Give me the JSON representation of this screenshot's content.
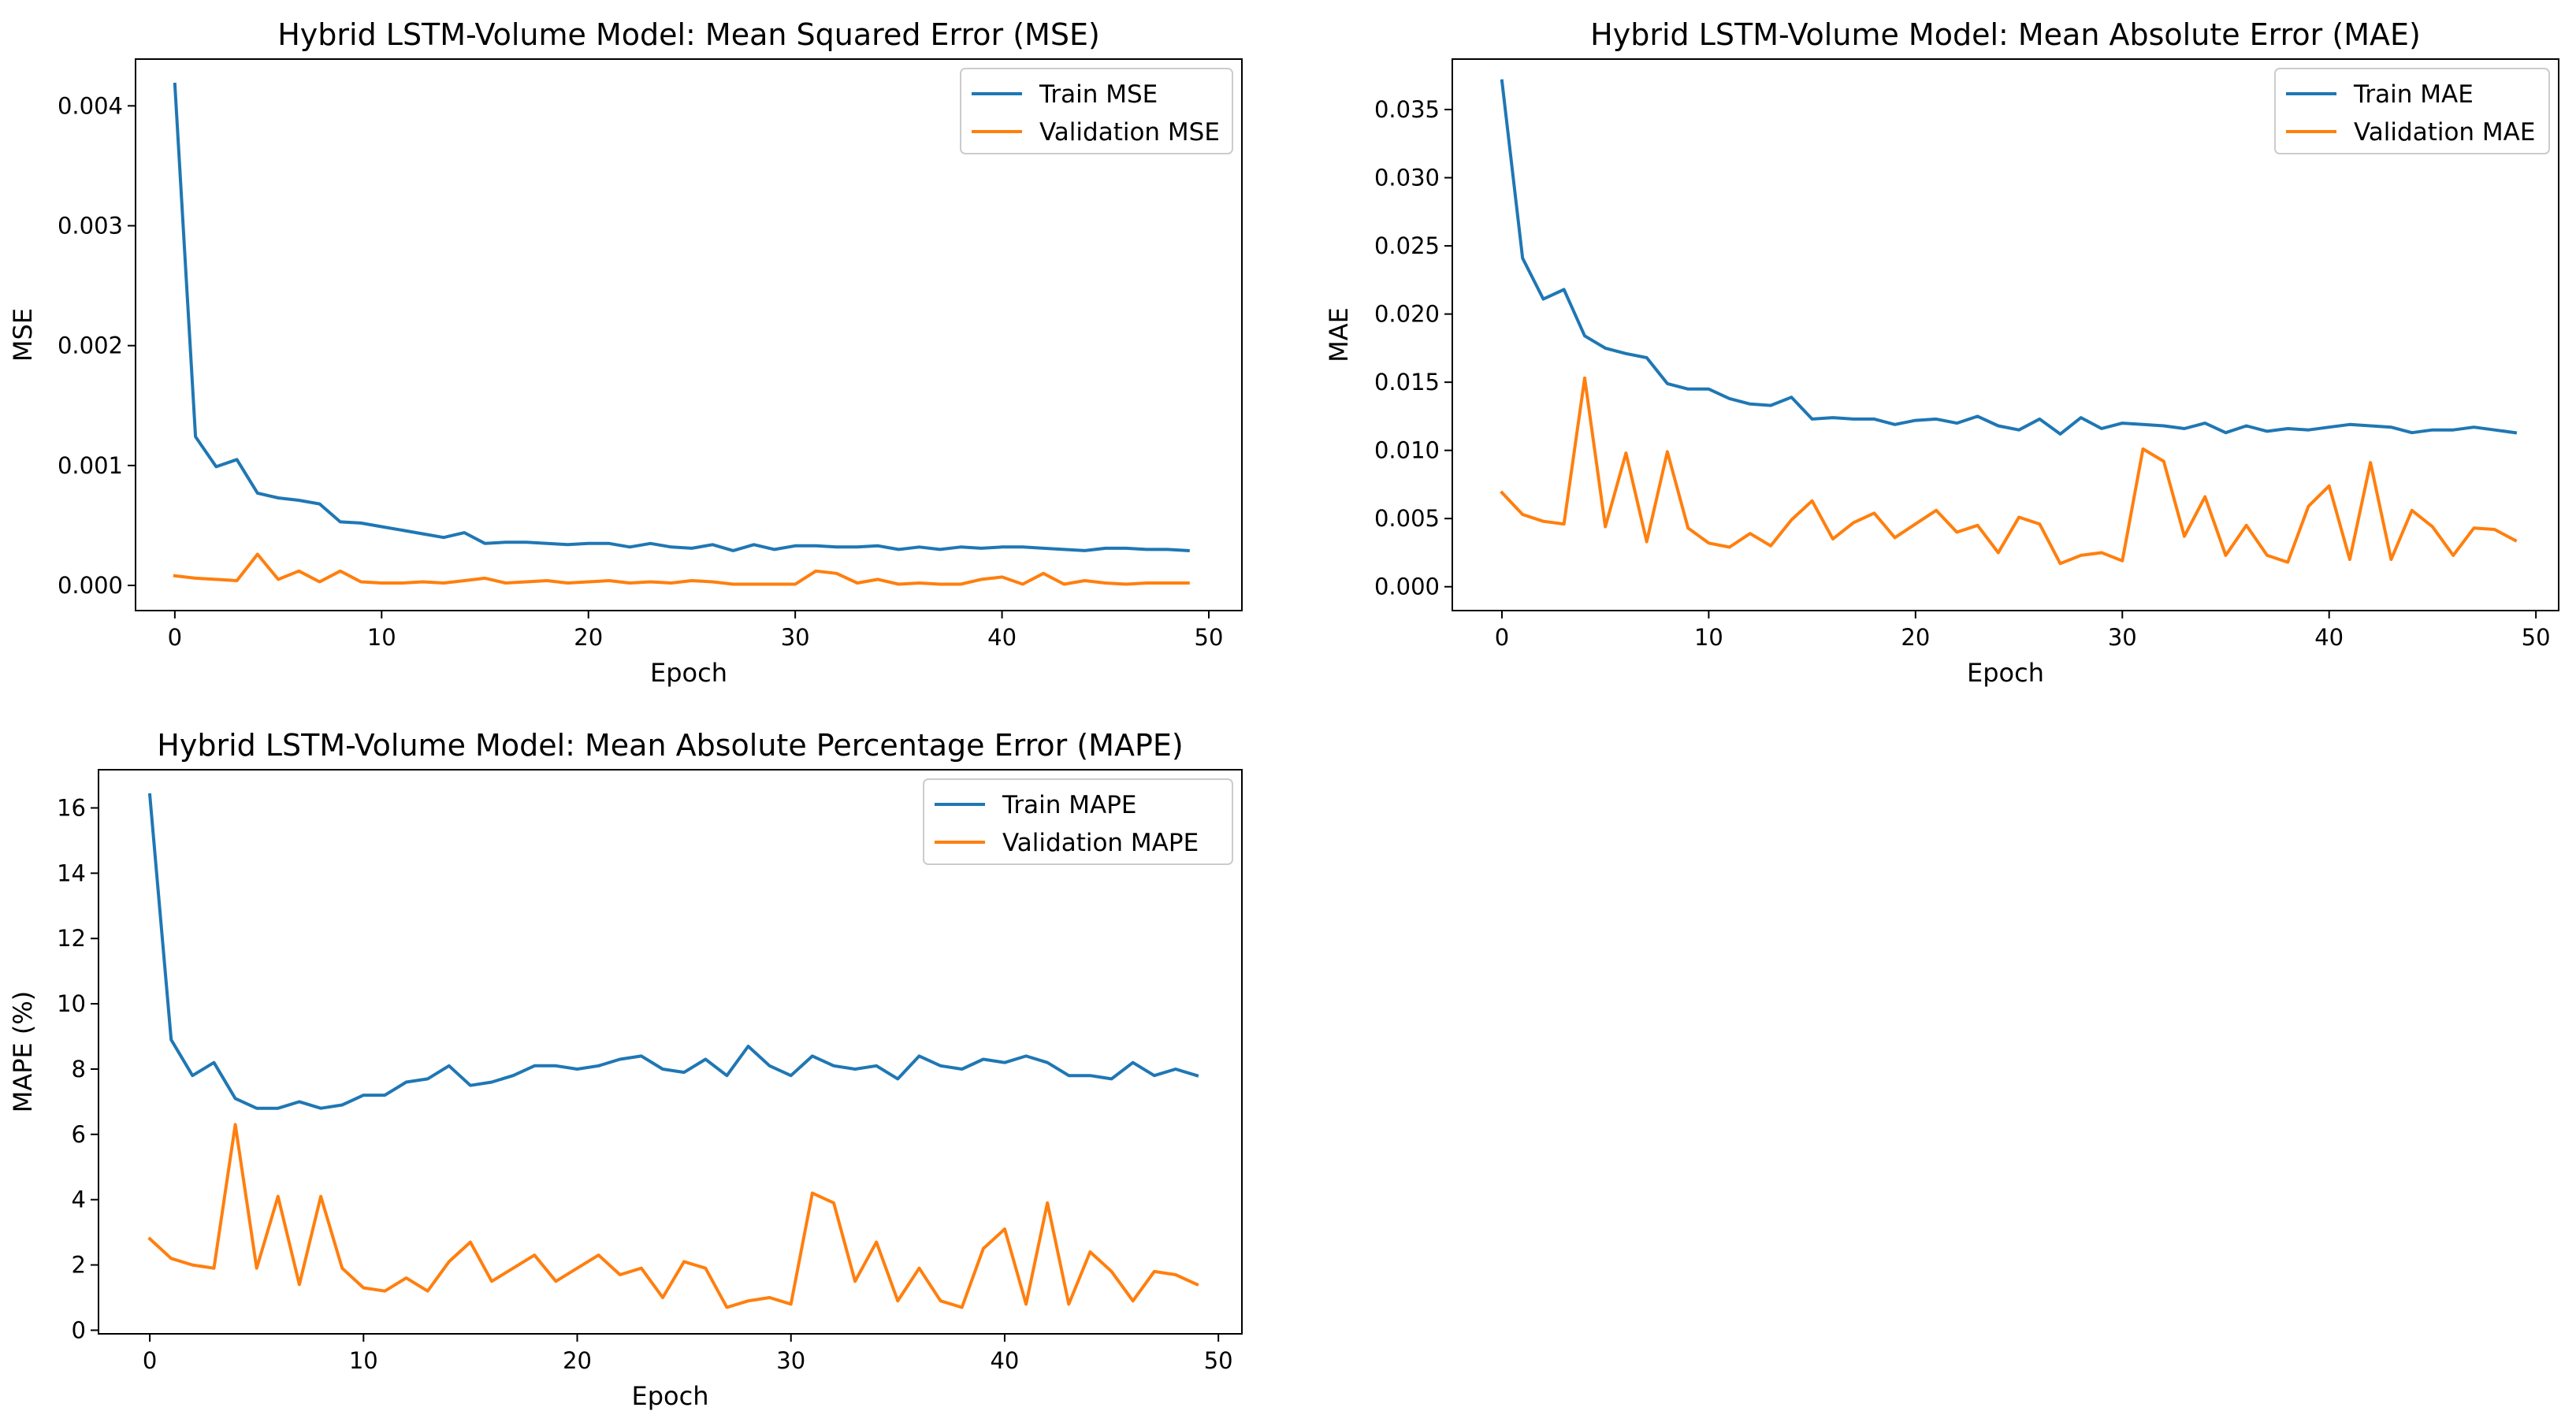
{
  "colors": {
    "train": "#1f77b4",
    "validation": "#ff7f0e"
  },
  "chart_data": [
    {
      "type": "line",
      "title": "Hybrid LSTM-Volume Model: Mean Squared Error (MSE)",
      "xlabel": "Epoch",
      "ylabel": "MSE",
      "xlim": [
        -1.9,
        51.6
      ],
      "ylim": [
        -0.00021,
        0.00439
      ],
      "xticks": [
        0,
        10,
        20,
        30,
        40,
        50
      ],
      "xtick_labels": [
        "0",
        "10",
        "20",
        "30",
        "40",
        "50"
      ],
      "yticks": [
        0,
        0.001,
        0.002,
        0.003,
        0.004
      ],
      "ytick_labels": [
        "0.000",
        "0.001",
        "0.002",
        "0.003",
        "0.004"
      ],
      "legend": "top-right",
      "x": [
        0,
        1,
        2,
        3,
        4,
        5,
        6,
        7,
        8,
        9,
        10,
        11,
        12,
        13,
        14,
        15,
        16,
        17,
        18,
        19,
        20,
        21,
        22,
        23,
        24,
        25,
        26,
        27,
        28,
        29,
        30,
        31,
        32,
        33,
        34,
        35,
        36,
        37,
        38,
        39,
        40,
        41,
        42,
        43,
        44,
        45,
        46,
        47,
        48,
        49
      ],
      "series": [
        {
          "name": "Train MSE",
          "color_key": "train",
          "values": [
            0.00418,
            0.00124,
            0.00099,
            0.00105,
            0.00077,
            0.00073,
            0.00071,
            0.00068,
            0.00053,
            0.00052,
            0.00049,
            0.00046,
            0.00043,
            0.0004,
            0.00044,
            0.00035,
            0.00036,
            0.00036,
            0.00035,
            0.00034,
            0.00035,
            0.00035,
            0.00032,
            0.00035,
            0.00032,
            0.00031,
            0.00034,
            0.00029,
            0.00034,
            0.0003,
            0.00033,
            0.00033,
            0.00032,
            0.00032,
            0.00033,
            0.0003,
            0.00032,
            0.0003,
            0.00032,
            0.00031,
            0.00032,
            0.00032,
            0.00031,
            0.0003,
            0.00029,
            0.00031,
            0.00031,
            0.0003,
            0.0003,
            0.00029
          ]
        },
        {
          "name": "Validation MSE",
          "color_key": "validation",
          "values": [
            8e-05,
            6e-05,
            5e-05,
            4e-05,
            0.00026,
            5e-05,
            0.00012,
            3e-05,
            0.00012,
            3e-05,
            2e-05,
            2e-05,
            3e-05,
            2e-05,
            4e-05,
            6e-05,
            2e-05,
            3e-05,
            4e-05,
            2e-05,
            3e-05,
            4e-05,
            2e-05,
            3e-05,
            2e-05,
            4e-05,
            3e-05,
            1e-05,
            1e-05,
            1e-05,
            1e-05,
            0.00012,
            0.0001,
            2e-05,
            5e-05,
            1e-05,
            2e-05,
            1e-05,
            1e-05,
            5e-05,
            7e-05,
            1e-05,
            0.0001,
            1e-05,
            4e-05,
            2e-05,
            1e-05,
            2e-05,
            2e-05,
            2e-05
          ]
        }
      ]
    },
    {
      "type": "line",
      "title": "Hybrid LSTM-Volume Model: Mean Absolute Error (MAE)",
      "xlabel": "Epoch",
      "ylabel": "MAE",
      "xlim": [
        -2.4,
        51.1
      ],
      "ylim": [
        -0.00175,
        0.0387
      ],
      "xticks": [
        0,
        10,
        20,
        30,
        40,
        50
      ],
      "xtick_labels": [
        "0",
        "10",
        "20",
        "30",
        "40",
        "50"
      ],
      "yticks": [
        0,
        0.005,
        0.01,
        0.015,
        0.02,
        0.025,
        0.03,
        0.035
      ],
      "ytick_labels": [
        "0.000",
        "0.005",
        "0.010",
        "0.015",
        "0.020",
        "0.025",
        "0.030",
        "0.035"
      ],
      "legend": "top-right",
      "x": [
        0,
        1,
        2,
        3,
        4,
        5,
        6,
        7,
        8,
        9,
        10,
        11,
        12,
        13,
        14,
        15,
        16,
        17,
        18,
        19,
        20,
        21,
        22,
        23,
        24,
        25,
        26,
        27,
        28,
        29,
        30,
        31,
        32,
        33,
        34,
        35,
        36,
        37,
        38,
        39,
        40,
        41,
        42,
        43,
        44,
        45,
        46,
        47,
        48,
        49
      ],
      "series": [
        {
          "name": "Train MAE",
          "color_key": "train",
          "values": [
            0.0371,
            0.0241,
            0.0211,
            0.0218,
            0.0184,
            0.0175,
            0.0171,
            0.0168,
            0.0149,
            0.0145,
            0.0145,
            0.0138,
            0.0134,
            0.0133,
            0.0139,
            0.0123,
            0.0124,
            0.0123,
            0.0123,
            0.0119,
            0.0122,
            0.0123,
            0.012,
            0.0125,
            0.0118,
            0.0115,
            0.0123,
            0.0112,
            0.0124,
            0.0116,
            0.012,
            0.0119,
            0.0118,
            0.0116,
            0.012,
            0.0113,
            0.0118,
            0.0114,
            0.0116,
            0.0115,
            0.0117,
            0.0119,
            0.0118,
            0.0117,
            0.0113,
            0.0115,
            0.0115,
            0.0117,
            0.0115,
            0.0113
          ]
        },
        {
          "name": "Validation MAE",
          "color_key": "validation",
          "values": [
            0.0069,
            0.0053,
            0.0048,
            0.0046,
            0.0153,
            0.0044,
            0.0098,
            0.0033,
            0.0099,
            0.0043,
            0.0032,
            0.0029,
            0.0039,
            0.003,
            0.0049,
            0.0063,
            0.0035,
            0.0047,
            0.0054,
            0.0036,
            0.0046,
            0.0056,
            0.004,
            0.0045,
            0.0025,
            0.0051,
            0.0046,
            0.0017,
            0.0023,
            0.0025,
            0.0019,
            0.0101,
            0.0092,
            0.0037,
            0.0066,
            0.0023,
            0.0045,
            0.0023,
            0.0018,
            0.0059,
            0.0074,
            0.002,
            0.0091,
            0.002,
            0.0056,
            0.0044,
            0.0023,
            0.0043,
            0.0042,
            0.0034
          ]
        }
      ]
    },
    {
      "type": "line",
      "title": "Hybrid LSTM-Volume Model: Mean Absolute Percentage Error (MAPE)",
      "xlabel": "Epoch",
      "ylabel": "MAPE (%)",
      "xlim": [
        -2.4,
        51.1
      ],
      "ylim": [
        -0.11,
        17.17
      ],
      "xticks": [
        0,
        10,
        20,
        30,
        40,
        50
      ],
      "xtick_labels": [
        "0",
        "10",
        "20",
        "30",
        "40",
        "50"
      ],
      "yticks": [
        0,
        2,
        4,
        6,
        8,
        10,
        12,
        14,
        16
      ],
      "ytick_labels": [
        "0",
        "2",
        "4",
        "6",
        "8",
        "10",
        "12",
        "14",
        "16"
      ],
      "legend": "top-right",
      "x": [
        0,
        1,
        2,
        3,
        4,
        5,
        6,
        7,
        8,
        9,
        10,
        11,
        12,
        13,
        14,
        15,
        16,
        17,
        18,
        19,
        20,
        21,
        22,
        23,
        24,
        25,
        26,
        27,
        28,
        29,
        30,
        31,
        32,
        33,
        34,
        35,
        36,
        37,
        38,
        39,
        40,
        41,
        42,
        43,
        44,
        45,
        46,
        47,
        48,
        49
      ],
      "series": [
        {
          "name": "Train MAPE",
          "color_key": "train",
          "values": [
            16.4,
            8.9,
            7.8,
            8.2,
            7.1,
            6.8,
            6.8,
            7.0,
            6.8,
            6.9,
            7.2,
            7.2,
            7.6,
            7.7,
            8.1,
            7.5,
            7.6,
            7.8,
            8.1,
            8.1,
            8.0,
            8.1,
            8.3,
            8.4,
            8.0,
            7.9,
            8.3,
            7.8,
            8.7,
            8.1,
            7.8,
            8.4,
            8.1,
            8.0,
            8.1,
            7.7,
            8.4,
            8.1,
            8.0,
            8.3,
            8.2,
            8.4,
            8.2,
            7.8,
            7.8,
            7.7,
            8.2,
            7.8,
            8.0,
            7.8
          ]
        },
        {
          "name": "Validation MAPE",
          "color_key": "validation",
          "values": [
            2.8,
            2.2,
            2.0,
            1.9,
            6.3,
            1.9,
            4.1,
            1.4,
            4.1,
            1.9,
            1.3,
            1.2,
            1.6,
            1.2,
            2.1,
            2.7,
            1.5,
            1.9,
            2.3,
            1.5,
            1.9,
            2.3,
            1.7,
            1.9,
            1.0,
            2.1,
            1.9,
            0.7,
            0.9,
            1.0,
            0.8,
            4.2,
            3.9,
            1.5,
            2.7,
            0.9,
            1.9,
            0.9,
            0.7,
            2.5,
            3.1,
            0.8,
            3.9,
            0.8,
            2.4,
            1.8,
            0.9,
            1.8,
            1.7,
            1.4
          ]
        }
      ]
    }
  ]
}
